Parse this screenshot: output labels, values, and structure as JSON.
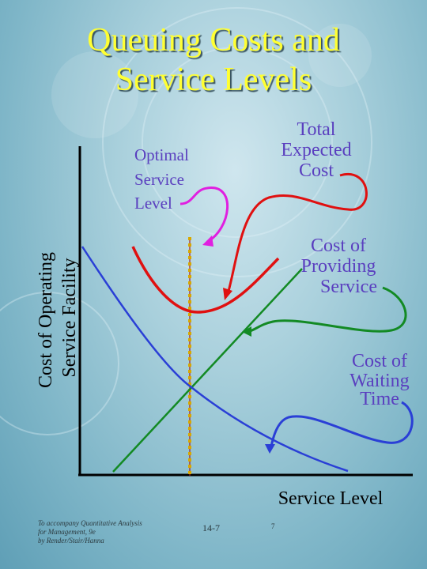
{
  "title": {
    "line1": "Queuing Costs and",
    "line2": "Service Levels"
  },
  "axes": {
    "y_label_line1": "Cost of Operating",
    "y_label_line2": "Service Facility",
    "x_label": "Service Level"
  },
  "labels": {
    "optimal": [
      "Optimal",
      "Service",
      "Level"
    ],
    "total": [
      "Total",
      "Expected",
      "Cost"
    ],
    "providing": [
      "Cost of",
      "Providing",
      "Service"
    ],
    "waiting": [
      "Cost of",
      "Waiting",
      "Time"
    ]
  },
  "footer": {
    "note_line1": "To accompany Quantitative Analysis",
    "note_line2": "for Management, 9e",
    "note_line3": "by Render/Stair/Hanna",
    "page": "14-7",
    "number": "7"
  },
  "colors": {
    "total_cost": "#e01010",
    "providing_cost": "#138a24",
    "waiting_cost": "#2a3fd6",
    "optimal": "#e020e0",
    "optimal_line": "#d8a800",
    "title": "#ffff33"
  }
}
